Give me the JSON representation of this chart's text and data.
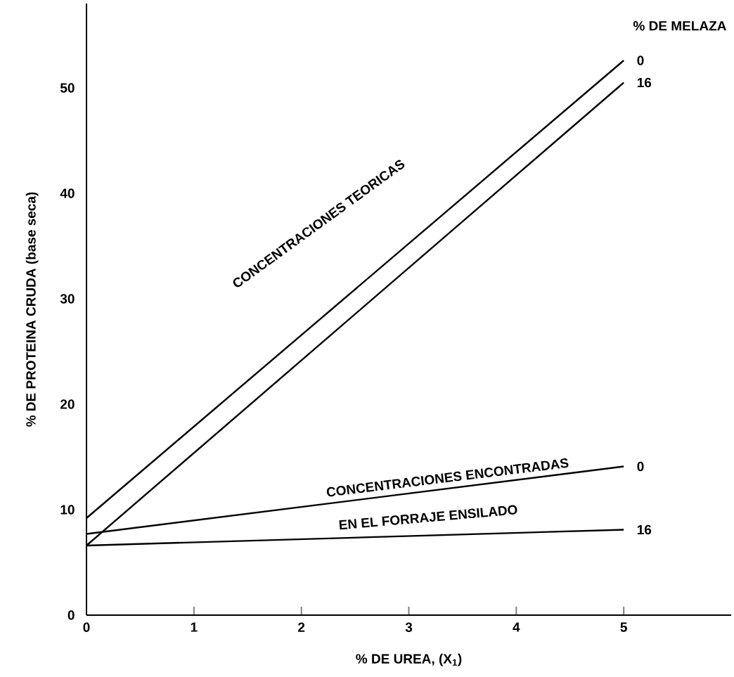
{
  "chart_data": {
    "type": "line",
    "xlabel": "% DE UREA, (X$_{1}$)",
    "ylabel": "% DE PROTEINA CRUDA (base seca)",
    "legend_title": "% DE MELAZA",
    "x": [
      0,
      5
    ],
    "xlim": [
      0,
      6
    ],
    "ylim": [
      0,
      58
    ],
    "xticks": [
      0,
      1,
      2,
      3,
      4,
      5
    ],
    "yticks": [
      0,
      10,
      20,
      30,
      40,
      50
    ],
    "grid": false,
    "marker": "none",
    "line_style": "solid",
    "series": [
      {
        "name": "0",
        "color": "#000000",
        "values": [
          9.2,
          52.6
        ]
      },
      {
        "name": "16",
        "color": "#000000",
        "values": [
          6.6,
          50.5
        ]
      },
      {
        "name": "0",
        "color": "#000000",
        "values": [
          7.7,
          14.1
        ]
      },
      {
        "name": "16",
        "color": "#000000",
        "values": [
          6.6,
          8.1
        ]
      }
    ],
    "annotations": [
      "CONCENTRACIONES    TEORICAS",
      "CONCENTRACIONES    ENCONTRADAS",
      "EN EL FORRAJE ENSILADO"
    ]
  }
}
